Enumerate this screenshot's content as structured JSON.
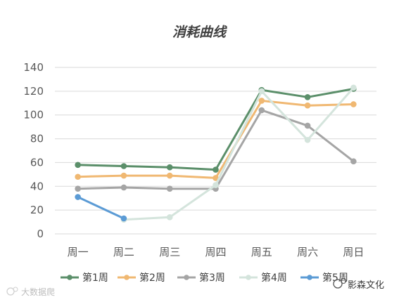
{
  "chart_data": {
    "type": "line",
    "title": "消耗曲线",
    "xlabel": "",
    "ylabel": "",
    "categories": [
      "周一",
      "周二",
      "周三",
      "周四",
      "周五",
      "周六",
      "周日"
    ],
    "ylim": [
      0,
      140
    ],
    "yticks": [
      0,
      20,
      40,
      60,
      80,
      100,
      120,
      140
    ],
    "grid": true,
    "legend_position": "bottom",
    "series": [
      {
        "name": "第1周",
        "color": "#5b8f6a",
        "values": [
          58,
          57,
          56,
          54,
          121,
          115,
          122
        ]
      },
      {
        "name": "第2周",
        "color": "#f0b872",
        "values": [
          48,
          49,
          49,
          47,
          112,
          108,
          109
        ]
      },
      {
        "name": "第3周",
        "color": "#a5a5a5",
        "values": [
          38,
          39,
          38,
          38,
          104,
          91,
          61
        ]
      },
      {
        "name": "第4周",
        "color": "#d4e4dc",
        "values": [
          null,
          12,
          14,
          41,
          120,
          79,
          123
        ]
      },
      {
        "name": "第5周",
        "color": "#5b9bd5",
        "values": [
          31,
          13,
          null,
          null,
          null,
          null,
          null
        ]
      }
    ]
  },
  "watermark": {
    "left": "大数据爬",
    "right": "影森文化"
  }
}
